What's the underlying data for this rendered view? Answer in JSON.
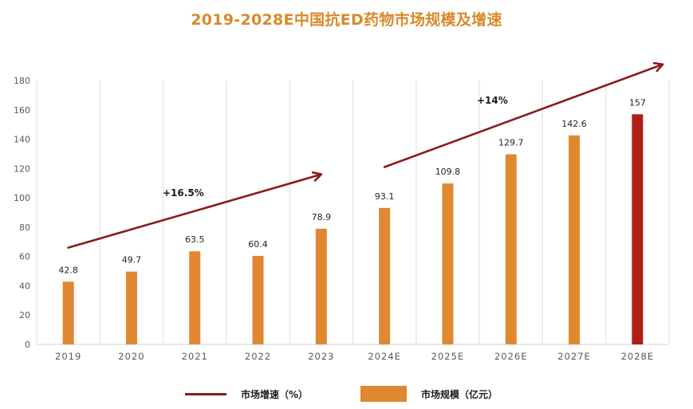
{
  "colors": {
    "title": "#D9892A",
    "bar": "#E08831",
    "bar_highlight": "#B01E18",
    "arrow": "#8B1A1A",
    "grid": "#E3E3E3"
  },
  "chart_data": {
    "type": "bar",
    "title": "2019-2028E中国抗ED药物市场规模及增速",
    "xlabel": "",
    "ylabel": "",
    "categories": [
      "2019",
      "2020",
      "2021",
      "2022",
      "2023",
      "2024E",
      "2025E",
      "2026E",
      "2027E",
      "2028E"
    ],
    "series": [
      {
        "name": "市场规模（亿元）",
        "values": [
          42.8,
          49.7,
          63.5,
          60.4,
          78.9,
          93.1,
          109.8,
          129.7,
          142.6,
          157
        ],
        "data_labels": [
          "42.8",
          "49.7",
          "63.5",
          "60.4",
          "78.9",
          "93.1",
          "109.8",
          "129.7",
          "142.6",
          "157"
        ],
        "highlight_index": 9
      }
    ],
    "ylim": [
      0,
      180
    ],
    "yticks": [
      0,
      20,
      40,
      60,
      80,
      100,
      120,
      140,
      160,
      180
    ],
    "grid": "vertical category separators",
    "trend_arrows": [
      {
        "label": "+16.5%",
        "from_category": "2019",
        "to_category": "2023",
        "from_value": 66,
        "to_value": 116,
        "to_offset": 0.0
      },
      {
        "label": "+14%",
        "from_category": "2024E",
        "to_category": "2028E",
        "from_value": 121,
        "to_value": 191,
        "to_offset": 0.4
      }
    ],
    "legend": {
      "placement": "bottom",
      "entries": [
        {
          "label": "市场增速（%）",
          "kind": "line"
        },
        {
          "label": "市场规模（亿元）",
          "kind": "box"
        }
      ]
    }
  }
}
